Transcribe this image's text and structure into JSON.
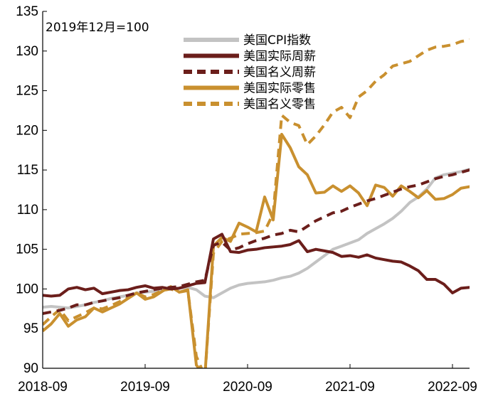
{
  "chart_data": {
    "type": "line",
    "annotation": "2019年12月=100",
    "ylim": [
      90,
      135
    ],
    "yticks": [
      90,
      95,
      100,
      105,
      110,
      115,
      120,
      125,
      130,
      135
    ],
    "xlim": [
      0,
      49
    ],
    "x_ticks": [
      {
        "x": 0,
        "label": "2018-09"
      },
      {
        "x": 12,
        "label": "2019-09"
      },
      {
        "x": 24,
        "label": "2020-09"
      },
      {
        "x": 36,
        "label": "2021-09"
      },
      {
        "x": 48,
        "label": "2022-09"
      }
    ],
    "series": [
      {
        "name": "美国CPI指数",
        "color": "#c3c3c3",
        "dash": false,
        "values": [
          97.7,
          97.8,
          97.7,
          97.6,
          97.8,
          98.0,
          98.3,
          98.5,
          98.8,
          99.0,
          99.2,
          99.5,
          99.6,
          99.7,
          99.9,
          100.0,
          100.1,
          100.2,
          99.9,
          99.1,
          98.9,
          99.5,
          100.1,
          100.5,
          100.7,
          100.8,
          100.9,
          101.1,
          101.4,
          101.6,
          102.0,
          102.6,
          103.4,
          104.2,
          105.0,
          105.4,
          105.8,
          106.2,
          107.0,
          107.6,
          108.2,
          108.9,
          109.8,
          110.9,
          111.6,
          112.6,
          114.0,
          114.4,
          114.6,
          114.8,
          115.1,
          115.4
        ]
      },
      {
        "name": "美国实际周薪",
        "color": "#6b1e1b",
        "dash": false,
        "values": [
          99.2,
          99.1,
          99.2,
          100.0,
          100.2,
          99.9,
          100.1,
          99.4,
          99.6,
          99.8,
          99.9,
          100.2,
          100.4,
          100.1,
          100.2,
          100.0,
          100.1,
          100.4,
          100.7,
          100.8,
          106.3,
          106.9,
          104.7,
          104.6,
          104.9,
          105.0,
          105.2,
          105.3,
          105.4,
          105.6,
          106.1,
          104.7,
          105.0,
          104.8,
          104.6,
          104.1,
          104.2,
          104.0,
          104.3,
          103.9,
          103.7,
          103.5,
          103.4,
          102.9,
          102.3,
          101.2,
          101.2,
          100.6,
          99.5,
          100.1,
          100.2,
          100.1
        ]
      },
      {
        "name": "美国名义周薪",
        "color": "#6b1e1b",
        "dash": true,
        "values": [
          96.9,
          97.1,
          97.3,
          97.6,
          98.0,
          98.0,
          98.3,
          98.5,
          98.7,
          98.9,
          99.2,
          99.5,
          99.7,
          99.9,
          100.1,
          100.2,
          100.3,
          100.6,
          100.9,
          101.1,
          105.5,
          105.9,
          104.9,
          105.2,
          105.7,
          106.1,
          106.4,
          106.8,
          107.0,
          107.4,
          107.2,
          107.9,
          108.6,
          109.1,
          109.6,
          109.8,
          110.3,
          110.7,
          111.1,
          111.4,
          111.8,
          112.2,
          112.6,
          112.9,
          113.1,
          113.5,
          113.9,
          114.2,
          114.4,
          114.7,
          115.0,
          115.3
        ]
      },
      {
        "name": "美国实际零售",
        "color": "#c9902f",
        "dash": false,
        "values": [
          94.7,
          95.6,
          96.9,
          95.3,
          96.1,
          96.5,
          97.6,
          97.1,
          97.6,
          98.1,
          98.8,
          99.5,
          98.7,
          99.0,
          99.7,
          100.3,
          99.6,
          99.9,
          90.4,
          89.0,
          105.4,
          106.5,
          106.0,
          108.3,
          107.8,
          107.2,
          111.6,
          108.7,
          119.5,
          117.8,
          115.4,
          114.4,
          112.1,
          112.2,
          113.0,
          112.3,
          113.0,
          112.1,
          110.5,
          113.1,
          112.8,
          111.7,
          113.0,
          112.3,
          111.5,
          112.4,
          111.3,
          111.4,
          111.9,
          112.7,
          112.9,
          112.8
        ]
      },
      {
        "name": "美国名义零售",
        "color": "#c9902f",
        "dash": true,
        "values": [
          95.5,
          96.5,
          97.4,
          96.0,
          96.5,
          97.0,
          97.6,
          97.5,
          97.9,
          98.4,
          98.9,
          99.5,
          99.0,
          99.3,
          99.8,
          100.0,
          99.6,
          99.8,
          91.5,
          89.0,
          104.5,
          106.0,
          106.4,
          106.9,
          107.0,
          107.1,
          107.3,
          109.5,
          121.9,
          121.0,
          120.6,
          118.2,
          119.3,
          120.7,
          122.3,
          122.9,
          121.6,
          124.2,
          125.0,
          126.2,
          127.0,
          128.1,
          128.4,
          128.7,
          129.4,
          130.1,
          130.5,
          130.6,
          130.8,
          131.2,
          131.4,
          131.5
        ]
      }
    ]
  }
}
